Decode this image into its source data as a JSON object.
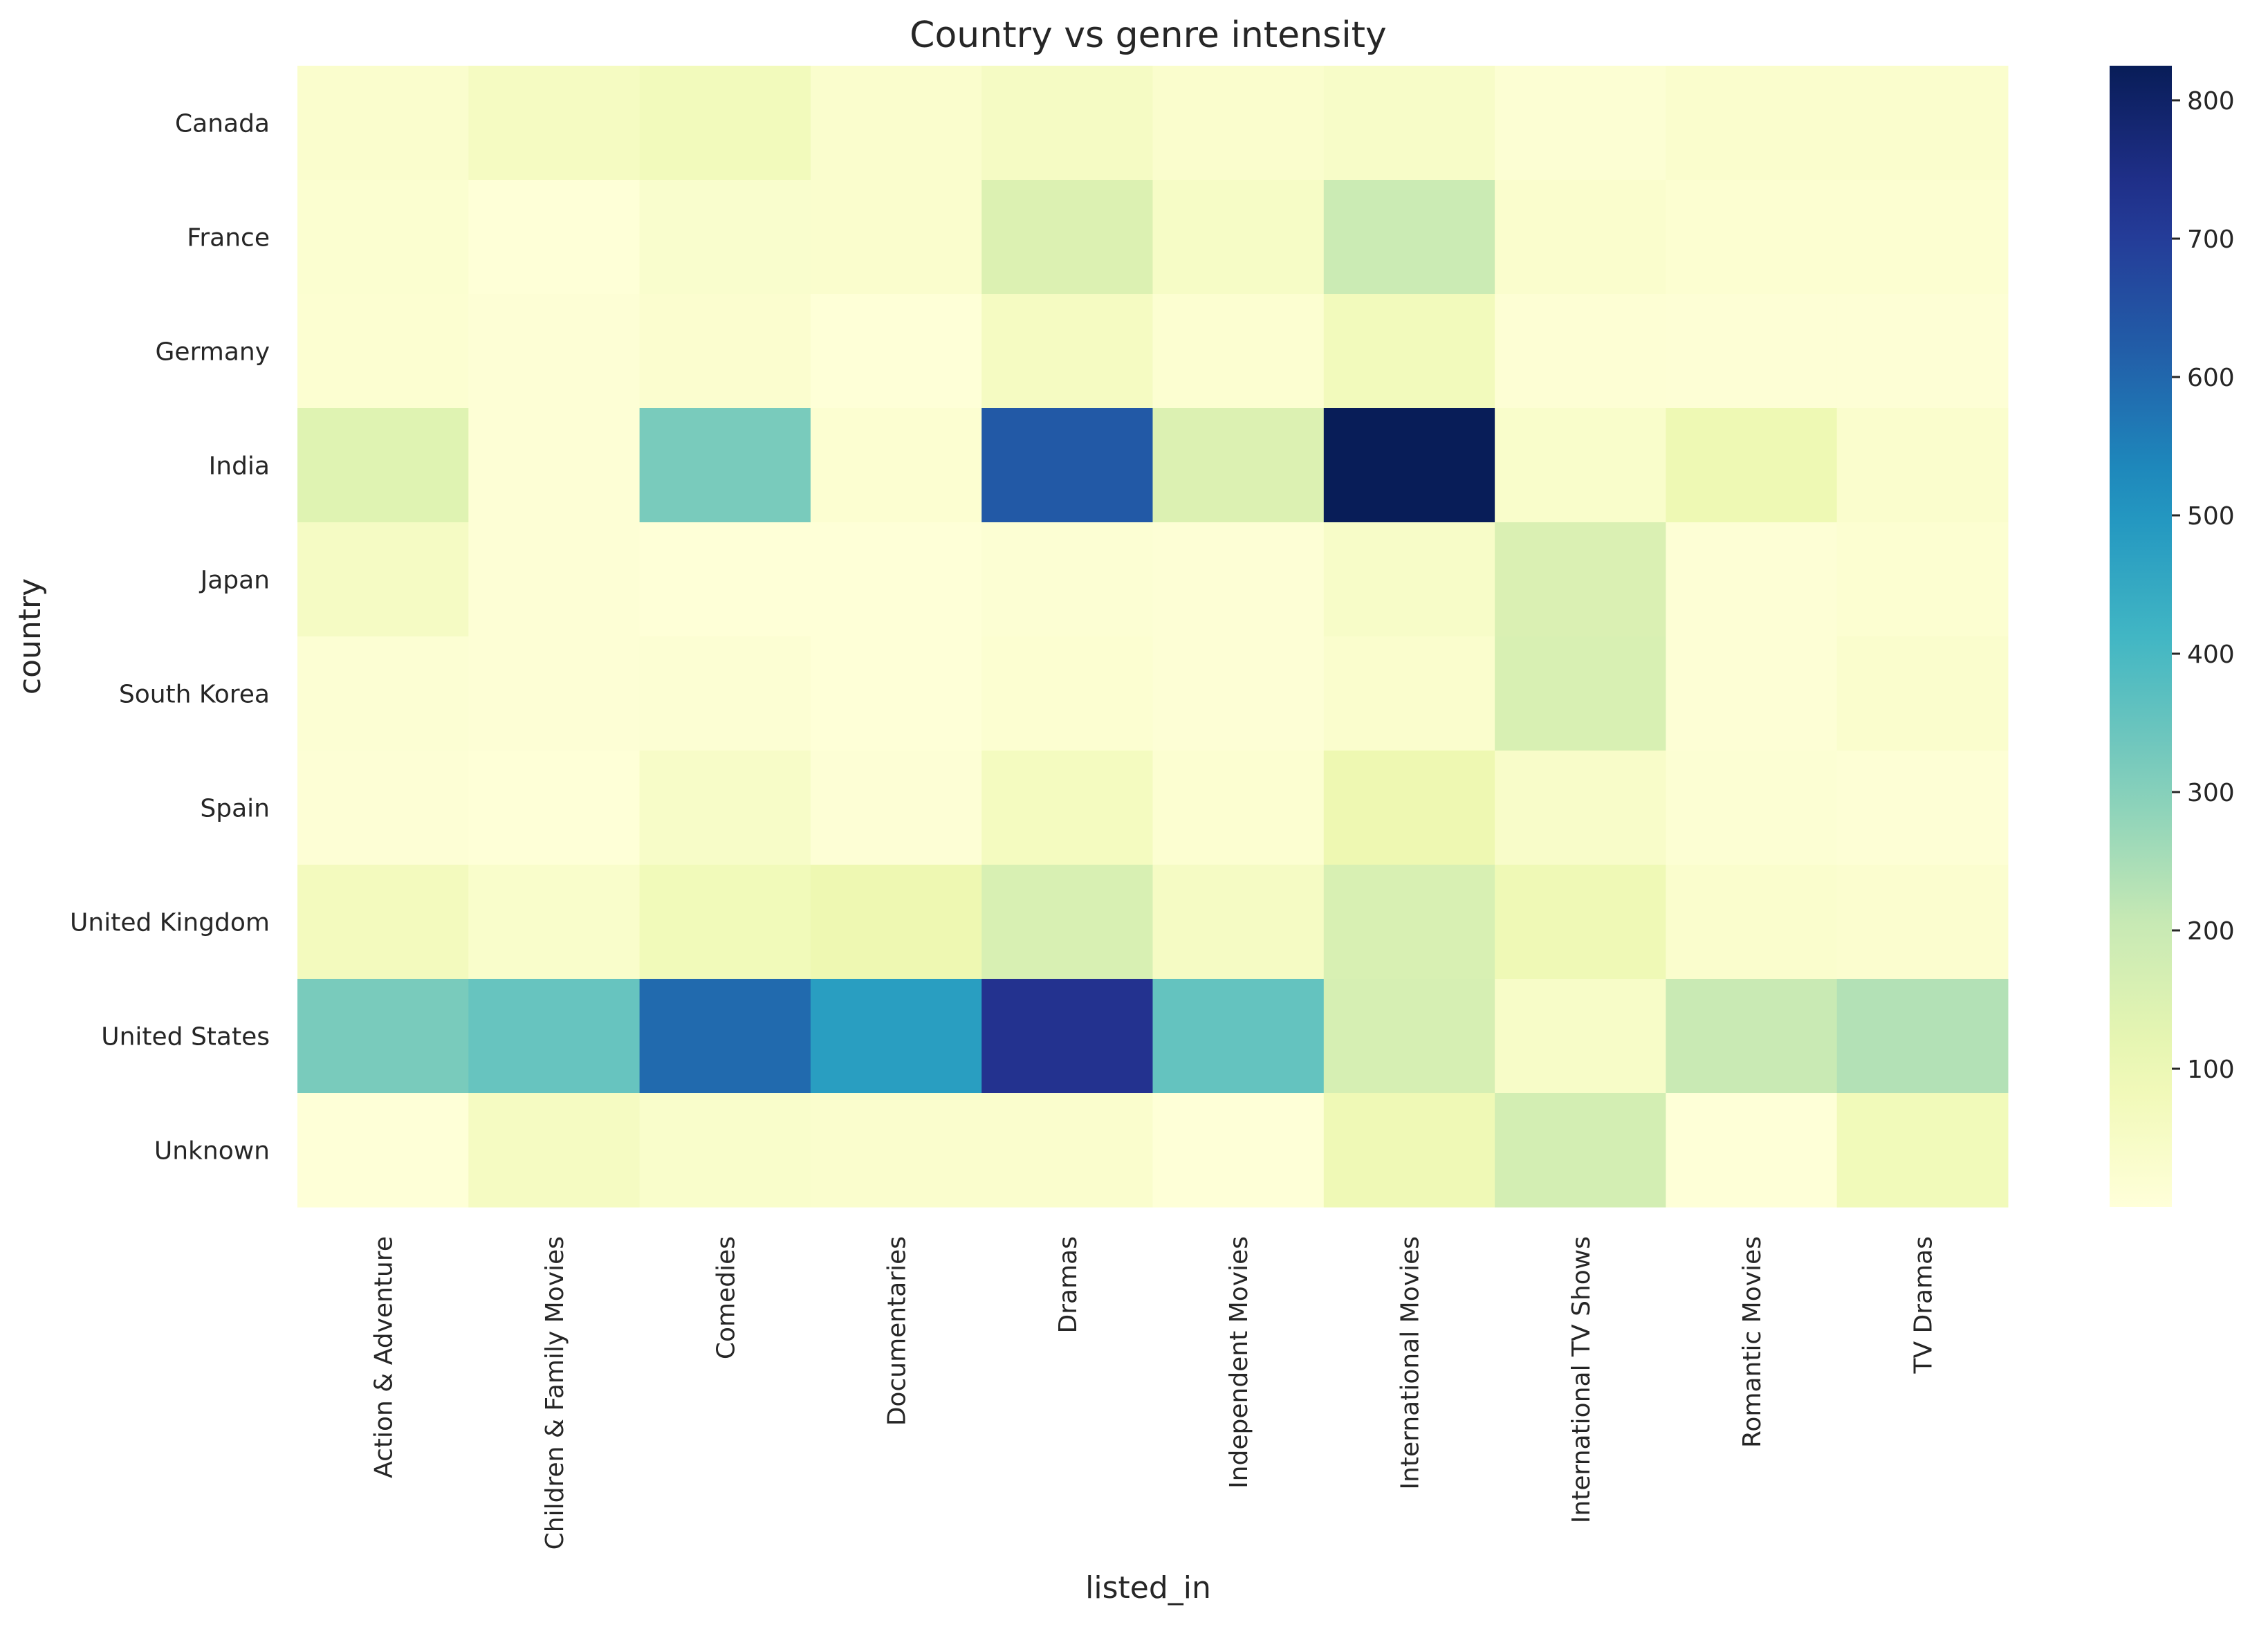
{
  "chart_data": {
    "type": "heatmap",
    "title": "Country vs genre intensity",
    "xlabel": "listed_in",
    "ylabel": "country",
    "x_categories": [
      "Action & Adventure",
      "Children & Family Movies",
      "Comedies",
      "Documentaries",
      "Dramas",
      "Independent Movies",
      "International Movies",
      "International TV Shows",
      "Romantic Movies",
      "TV Dramas"
    ],
    "y_categories": [
      "Canada",
      "France",
      "Germany",
      "India",
      "Japan",
      "South Korea",
      "Spain",
      "United Kingdom",
      "United States",
      "Unknown"
    ],
    "values": [
      [
        30,
        60,
        75,
        30,
        55,
        30,
        45,
        15,
        30,
        30
      ],
      [
        22,
        5,
        32,
        30,
        150,
        50,
        195,
        30,
        20,
        20
      ],
      [
        20,
        10,
        25,
        5,
        60,
        20,
        75,
        12,
        10,
        10
      ],
      [
        140,
        10,
        320,
        20,
        630,
        150,
        825,
        35,
        95,
        30
      ],
      [
        55,
        10,
        5,
        5,
        15,
        10,
        45,
        155,
        10,
        20
      ],
      [
        15,
        10,
        15,
        5,
        20,
        10,
        30,
        160,
        10,
        30
      ],
      [
        10,
        5,
        45,
        10,
        65,
        20,
        100,
        40,
        15,
        10
      ],
      [
        70,
        35,
        80,
        100,
        160,
        55,
        160,
        90,
        30,
        25
      ],
      [
        320,
        350,
        595,
        480,
        730,
        355,
        165,
        45,
        200,
        235
      ],
      [
        5,
        60,
        35,
        30,
        30,
        5,
        90,
        175,
        5,
        80
      ]
    ],
    "vmin": 0,
    "vmax": 825,
    "colormap": "YlGnBu",
    "colorbar_ticks": [
      100,
      200,
      300,
      400,
      500,
      600,
      700,
      800
    ]
  }
}
